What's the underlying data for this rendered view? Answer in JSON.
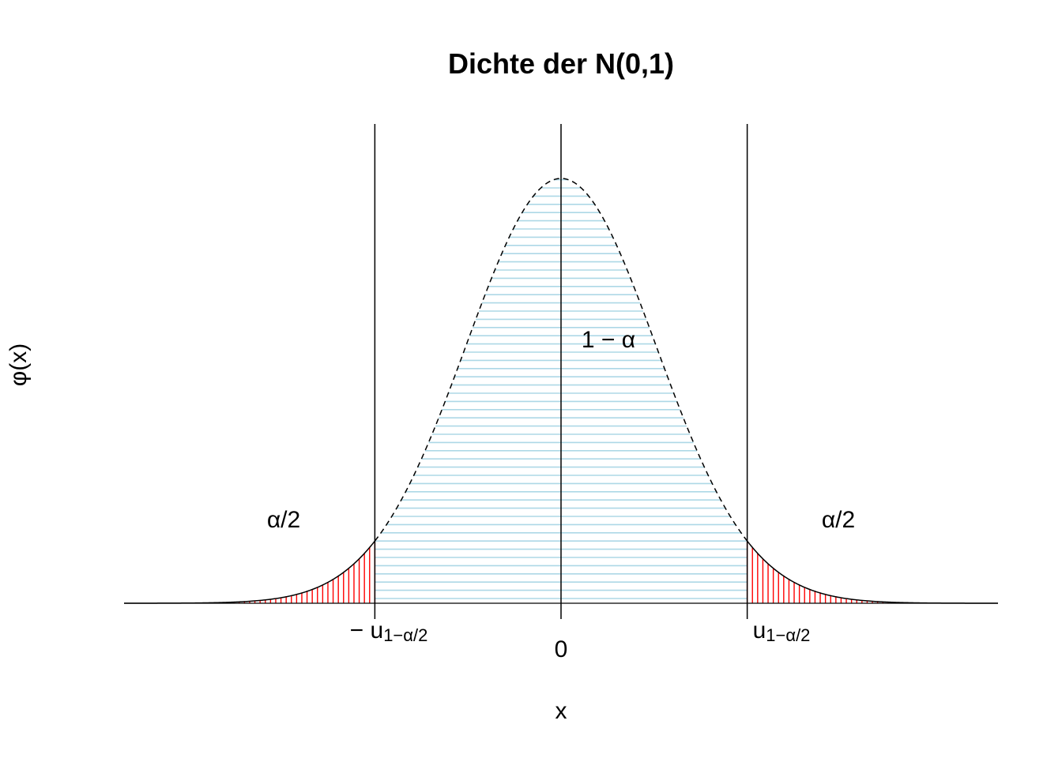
{
  "chart_data": {
    "type": "area",
    "title": "Dichte der N(0,1)",
    "xlabel": "x",
    "ylabel": "φ(x)",
    "distribution": "standard normal",
    "mean": 0,
    "sd": 1,
    "xlim": [
      -4.6,
      4.6
    ],
    "ylim": [
      0,
      0.4
    ],
    "critical_value": 1.96,
    "x_tick_labels": {
      "left": {
        "prefix": "− u",
        "subscript": "1−α/2"
      },
      "center": "0",
      "right": {
        "prefix": "u",
        "subscript": "1−α/2"
      }
    },
    "region_labels": {
      "center": "1 − α",
      "left_tail": "α/2",
      "right_tail": "α/2"
    },
    "vertical_lines_at": [
      -1.96,
      0,
      1.96
    ],
    "colors": {
      "center_fill_lines": "#ADD8E6",
      "tail_fill_lines": "#FF0000",
      "curve": "#000000"
    },
    "center_hatch": "horizontal",
    "tail_hatch": "vertical",
    "curve_dashed_over_center": true
  }
}
